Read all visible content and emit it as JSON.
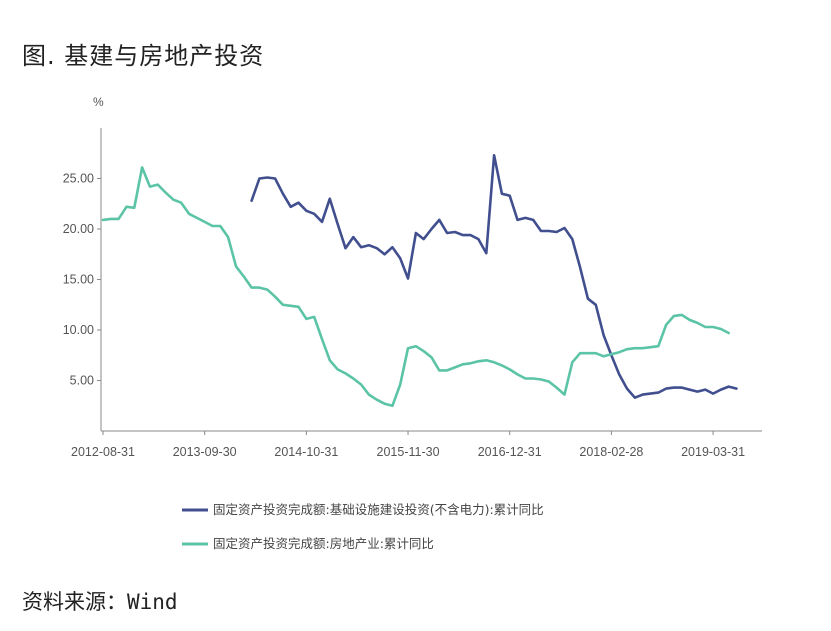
{
  "figure_title": "图. 基建与房地产投资",
  "source": "资料来源：Wind",
  "chart_data": {
    "type": "line",
    "ylabel": "%",
    "ylim": [
      0,
      30
    ],
    "y_ticks": [
      "5.00",
      "10.00",
      "15.00",
      "20.00",
      "25.00"
    ],
    "y_tick_values": [
      5,
      10,
      15,
      20,
      25
    ],
    "x_ticks": [
      "2012-08-31",
      "2013-09-30",
      "2014-10-31",
      "2015-11-30",
      "2016-12-31",
      "2018-02-28",
      "2019-03-31"
    ],
    "x_tick_index": [
      0,
      13,
      26,
      39,
      52,
      65,
      78
    ],
    "x_count": 85,
    "grid": false,
    "legend_position": "bottom",
    "series": [
      {
        "name": "固定资产投资完成额:基础设施建设投资(不含电力):累计同比",
        "color": "#414f8f",
        "start_index": 19,
        "values": [
          22.8,
          25.0,
          25.1,
          25.0,
          23.5,
          22.2,
          22.6,
          21.8,
          21.5,
          20.7,
          23.0,
          20.5,
          18.1,
          19.2,
          18.2,
          18.4,
          18.1,
          17.5,
          18.2,
          17.1,
          15.1,
          19.6,
          19.0,
          20.0,
          20.9,
          19.6,
          19.7,
          19.4,
          19.4,
          19.0,
          17.6,
          27.3,
          23.5,
          23.3,
          20.9,
          21.1,
          20.9,
          19.8,
          19.8,
          19.7,
          20.1,
          19.0,
          16.2,
          13.1,
          12.5,
          9.5,
          7.5,
          5.6,
          4.2,
          3.3,
          3.6,
          3.7,
          3.8,
          4.2,
          4.3,
          4.3,
          4.1,
          3.9,
          4.1,
          3.7,
          4.1,
          4.4,
          4.2
        ]
      },
      {
        "name": "固定资产投资完成额:房地产业:累计同比",
        "color": "#5cc4a6",
        "start_index": 0,
        "values": [
          20.9,
          21.0,
          21.0,
          22.2,
          22.1,
          26.1,
          24.2,
          24.4,
          23.6,
          22.9,
          22.6,
          21.5,
          21.1,
          20.7,
          20.3,
          20.3,
          19.2,
          16.3,
          15.3,
          14.2,
          14.2,
          14.0,
          13.3,
          12.5,
          12.4,
          12.3,
          11.1,
          11.3,
          9.1,
          7.0,
          6.1,
          5.7,
          5.2,
          4.6,
          3.6,
          3.1,
          2.7,
          2.5,
          4.6,
          8.2,
          8.4,
          7.9,
          7.3,
          6.0,
          6.0,
          6.3,
          6.6,
          6.7,
          6.9,
          7.0,
          6.8,
          6.5,
          6.1,
          5.6,
          5.2,
          5.2,
          5.1,
          4.9,
          4.3,
          3.6,
          6.8,
          7.7,
          7.7,
          7.7,
          7.4,
          7.6,
          7.8,
          8.1,
          8.2,
          8.2,
          8.3,
          8.4,
          10.5,
          11.4,
          11.5,
          11.0,
          10.7,
          10.3,
          10.3,
          10.1,
          9.7
        ]
      }
    ]
  }
}
